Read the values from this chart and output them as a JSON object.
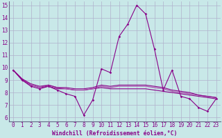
{
  "xlabel": "Windchill (Refroidissement éolien,°C)",
  "xlim": [
    -0.5,
    23.5
  ],
  "ylim": [
    5.7,
    15.3
  ],
  "yticks": [
    6,
    7,
    8,
    9,
    10,
    11,
    12,
    13,
    14,
    15
  ],
  "xticks": [
    0,
    1,
    2,
    3,
    4,
    5,
    6,
    7,
    8,
    9,
    10,
    11,
    12,
    13,
    14,
    15,
    16,
    17,
    18,
    19,
    20,
    21,
    22,
    23
  ],
  "background_color": "#c8e8e8",
  "grid_color": "#b0b0cc",
  "line_color": "#880088",
  "line_color2": "#aa44aa",
  "series1": [
    9.8,
    9.0,
    8.5,
    8.3,
    8.5,
    8.2,
    7.9,
    7.7,
    6.2,
    7.4,
    9.9,
    9.6,
    12.5,
    13.5,
    15.0,
    14.3,
    11.5,
    8.2,
    9.8,
    7.7,
    7.5,
    6.8,
    6.5,
    7.5
  ],
  "series2": [
    9.8,
    9.0,
    8.6,
    8.4,
    8.5,
    8.3,
    8.3,
    8.2,
    8.2,
    8.3,
    8.4,
    8.3,
    8.3,
    8.3,
    8.3,
    8.3,
    8.2,
    8.1,
    8.0,
    7.9,
    7.8,
    7.7,
    7.6,
    7.5
  ],
  "series3": [
    9.8,
    9.1,
    8.6,
    8.4,
    8.6,
    8.4,
    8.3,
    8.2,
    8.2,
    8.3,
    8.5,
    8.4,
    8.5,
    8.5,
    8.5,
    8.5,
    8.4,
    8.3,
    8.1,
    8.0,
    7.9,
    7.8,
    7.7,
    7.6
  ],
  "series4": [
    9.8,
    9.1,
    8.7,
    8.5,
    8.6,
    8.4,
    8.4,
    8.3,
    8.3,
    8.4,
    8.6,
    8.5,
    8.6,
    8.6,
    8.6,
    8.6,
    8.5,
    8.4,
    8.2,
    8.1,
    8.0,
    7.8,
    7.7,
    7.6
  ]
}
